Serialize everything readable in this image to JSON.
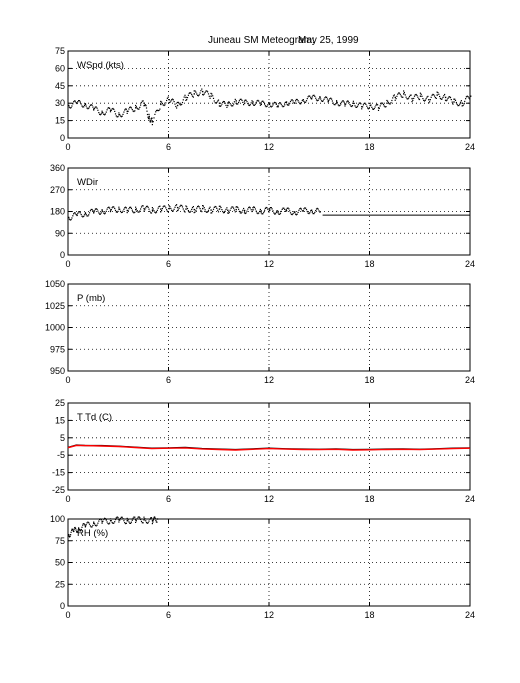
{
  "title": {
    "station": "Juneau SM Meteogram:",
    "date": "May 25, 1999"
  },
  "colors": {
    "trace": "#000000",
    "temperature": "#000000",
    "dewpoint": "#ff0000"
  },
  "chart_data": [
    {
      "type": "scatter",
      "label": "WSpd (kts)",
      "xlim": [
        0,
        24
      ],
      "ylim": [
        0,
        75
      ],
      "xticks": [
        0,
        6,
        12,
        18,
        24
      ],
      "yticks": [
        0,
        15,
        30,
        45,
        60,
        75
      ],
      "grid": true,
      "series": [
        {
          "style": "dots",
          "x": [
            0,
            0.5,
            1,
            1.5,
            2,
            2.5,
            3,
            3.5,
            4,
            4.5,
            4.8,
            5,
            5.5,
            6,
            6.5,
            7,
            7.5,
            8,
            8.5,
            9,
            9.5,
            10,
            10.5,
            11,
            11.5,
            12,
            12.5,
            13,
            13.5,
            14,
            14.5,
            15,
            15.5,
            16,
            16.5,
            17,
            17.5,
            18,
            18.5,
            19,
            19.5,
            20,
            20.5,
            21,
            21.5,
            22,
            22.5,
            23,
            23.5,
            24
          ],
          "y": [
            28,
            30,
            29,
            25,
            22,
            24,
            20,
            23,
            26,
            30,
            18,
            14,
            29,
            33,
            28,
            35,
            38,
            40,
            36,
            30,
            28,
            32,
            30,
            31,
            29,
            30,
            27,
            31,
            30,
            33,
            34,
            35,
            32,
            31,
            29,
            30,
            27,
            28,
            26,
            30,
            35,
            38,
            34,
            36,
            33,
            37,
            35,
            31,
            30,
            36
          ]
        }
      ]
    },
    {
      "type": "scatter",
      "label": "WDir",
      "xlim": [
        0,
        24
      ],
      "ylim": [
        0,
        360
      ],
      "xticks": [
        0,
        6,
        12,
        18,
        24
      ],
      "yticks": [
        0,
        90,
        180,
        270,
        360
      ],
      "grid": true,
      "series": [
        {
          "style": "dots",
          "x": [
            0,
            0.5,
            1,
            1.5,
            2,
            2.5,
            3,
            3.5,
            4,
            4.5,
            5,
            5.5,
            6,
            6.5,
            7,
            7.5,
            8,
            8.5,
            9,
            9.5,
            10,
            10.5,
            11,
            11.5,
            12,
            12.5,
            13,
            13.5,
            14,
            14.5,
            15
          ],
          "y": [
            155,
            165,
            172,
            178,
            182,
            186,
            190,
            184,
            188,
            192,
            185,
            190,
            192,
            196,
            190,
            188,
            192,
            186,
            190,
            185,
            188,
            184,
            187,
            182,
            185,
            180,
            183,
            178,
            182,
            185,
            178
          ]
        },
        {
          "style": "line",
          "x": [
            15.2,
            24
          ],
          "y": [
            165,
            165
          ]
        }
      ]
    },
    {
      "type": "line",
      "label": "P (mb)",
      "xlim": [
        0,
        24
      ],
      "ylim": [
        950,
        1050
      ],
      "xticks": [
        0,
        6,
        12,
        18,
        24
      ],
      "yticks": [
        950,
        975,
        1000,
        1025,
        1050
      ],
      "grid": true,
      "series": []
    },
    {
      "type": "line",
      "label": "T Td (C)",
      "xlim": [
        0,
        24
      ],
      "ylim": [
        -25,
        25
      ],
      "xticks": [
        0,
        6,
        12,
        18,
        24
      ],
      "yticks": [
        -25,
        -15,
        -5,
        5,
        15,
        25
      ],
      "grid": true,
      "series": [
        {
          "style": "line",
          "color_key": "temperature",
          "x": [
            0,
            0.5,
            1,
            2,
            3,
            4,
            5,
            6,
            7,
            8,
            9,
            10,
            11,
            12,
            13,
            14,
            15,
            16,
            17,
            18,
            19,
            20,
            21,
            22,
            23,
            24
          ],
          "y": [
            -0.5,
            0.8,
            0.6,
            0.5,
            0.2,
            -0.4,
            -1.0,
            -0.8,
            -0.6,
            -1.2,
            -1.5,
            -1.8,
            -1.4,
            -1.0,
            -1.3,
            -1.5,
            -1.6,
            -1.4,
            -1.8,
            -1.7,
            -1.5,
            -1.4,
            -1.6,
            -1.3,
            -1.0,
            -0.8
          ]
        },
        {
          "style": "line",
          "color_key": "dewpoint",
          "x": [
            0,
            0.5,
            1,
            2,
            3,
            4,
            5,
            6,
            7,
            8,
            9,
            10,
            11,
            12,
            13,
            14,
            15,
            16,
            17,
            18,
            19,
            20,
            21,
            22,
            23,
            24
          ],
          "y": [
            -0.7,
            0.6,
            0.5,
            0.3,
            0.0,
            -0.6,
            -1.2,
            -1.0,
            -0.8,
            -1.4,
            -1.7,
            -2.0,
            -1.6,
            -1.2,
            -1.5,
            -1.7,
            -1.8,
            -1.6,
            -2.0,
            -1.9,
            -1.7,
            -1.6,
            -1.8,
            -1.5,
            -1.2,
            -1.0
          ]
        }
      ]
    },
    {
      "type": "scatter",
      "label": "RH (%)",
      "xlim": [
        0,
        24
      ],
      "ylim": [
        0,
        100
      ],
      "xticks": [
        0,
        6,
        12,
        18,
        24
      ],
      "yticks": [
        0,
        25,
        50,
        75,
        100
      ],
      "grid": true,
      "series": [
        {
          "style": "dots",
          "x": [
            0,
            0.3,
            0.6,
            1,
            1.5,
            2,
            2.5,
            3,
            3.5,
            4,
            4.5,
            5,
            5.3
          ],
          "y": [
            82,
            86,
            89,
            92,
            95,
            97,
            98,
            99,
            98,
            99,
            99,
            98,
            100
          ]
        }
      ]
    }
  ]
}
